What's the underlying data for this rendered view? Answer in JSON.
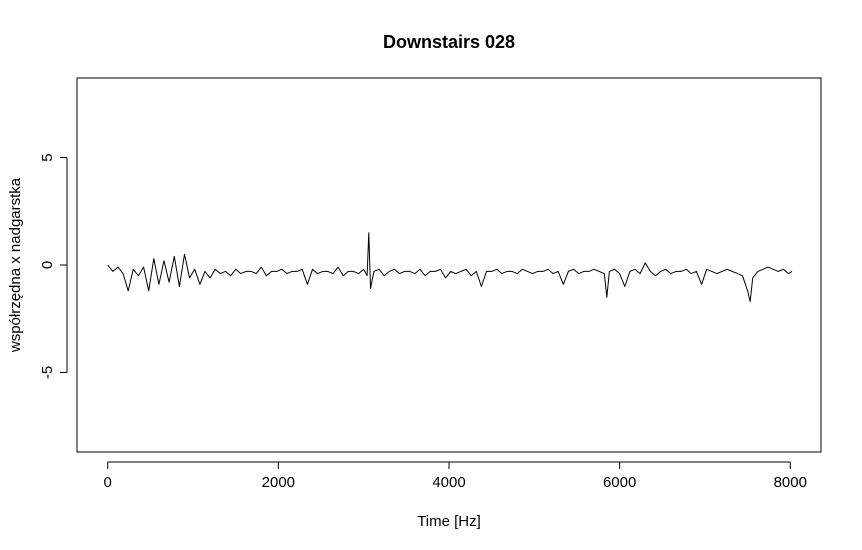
{
  "chart_data": {
    "type": "line",
    "title": "Downstairs 028",
    "xlabel": "Time [Hz]",
    "ylabel": "współrzędna x nadgarstka",
    "xlim": [
      -360,
      8360
    ],
    "ylim": [
      -8.7,
      8.7
    ],
    "xticks": [
      0,
      2000,
      4000,
      6000,
      8000
    ],
    "yticks": [
      -5,
      0,
      5
    ],
    "xtick_labels": [
      "0",
      "2000",
      "4000",
      "6000",
      "8000"
    ],
    "ytick_labels": [
      "-5",
      "0",
      "5"
    ],
    "grid": false,
    "legend": "none",
    "series": [
      {
        "line_color": "#000000",
        "x": [
          0,
          60,
          120,
          180,
          240,
          300,
          360,
          420,
          480,
          540,
          600,
          660,
          720,
          780,
          840,
          900,
          960,
          1020,
          1080,
          1140,
          1200,
          1260,
          1320,
          1380,
          1440,
          1500,
          1560,
          1620,
          1680,
          1740,
          1800,
          1860,
          1920,
          1980,
          2040,
          2100,
          2160,
          2220,
          2280,
          2340,
          2400,
          2460,
          2520,
          2580,
          2640,
          2700,
          2760,
          2820,
          2880,
          2940,
          3000,
          3040,
          3060,
          3080,
          3120,
          3180,
          3240,
          3300,
          3360,
          3420,
          3480,
          3540,
          3600,
          3660,
          3720,
          3780,
          3840,
          3900,
          3960,
          4020,
          4080,
          4140,
          4200,
          4260,
          4320,
          4380,
          4440,
          4500,
          4560,
          4620,
          4680,
          4740,
          4800,
          4860,
          4920,
          4980,
          5040,
          5100,
          5160,
          5220,
          5280,
          5340,
          5400,
          5460,
          5520,
          5580,
          5640,
          5700,
          5760,
          5820,
          5850,
          5880,
          5940,
          6000,
          6060,
          6120,
          6180,
          6240,
          6300,
          6360,
          6420,
          6480,
          6540,
          6600,
          6660,
          6720,
          6780,
          6840,
          6900,
          6960,
          7020,
          7080,
          7140,
          7200,
          7260,
          7320,
          7380,
          7440,
          7500,
          7530,
          7560,
          7620,
          7680,
          7740,
          7800,
          7860,
          7920,
          7980,
          8020
        ],
        "y": [
          0.0,
          -0.3,
          -0.1,
          -0.4,
          -1.2,
          -0.2,
          -0.5,
          -0.1,
          -1.2,
          0.3,
          -0.9,
          0.2,
          -0.8,
          0.4,
          -1.0,
          0.5,
          -0.6,
          -0.2,
          -0.9,
          -0.3,
          -0.6,
          -0.2,
          -0.4,
          -0.3,
          -0.5,
          -0.2,
          -0.4,
          -0.3,
          -0.3,
          -0.4,
          -0.1,
          -0.5,
          -0.3,
          -0.3,
          -0.2,
          -0.4,
          -0.3,
          -0.3,
          -0.2,
          -0.9,
          -0.2,
          -0.4,
          -0.3,
          -0.3,
          -0.4,
          -0.1,
          -0.5,
          -0.3,
          -0.3,
          -0.4,
          -0.2,
          -0.5,
          1.5,
          -1.1,
          -0.3,
          -0.2,
          -0.5,
          -0.3,
          -0.2,
          -0.4,
          -0.3,
          -0.3,
          -0.4,
          -0.2,
          -0.5,
          -0.3,
          -0.3,
          -0.2,
          -0.6,
          -0.3,
          -0.4,
          -0.3,
          -0.2,
          -0.5,
          -0.3,
          -1.0,
          -0.3,
          -0.3,
          -0.2,
          -0.4,
          -0.3,
          -0.3,
          -0.4,
          -0.2,
          -0.3,
          -0.4,
          -0.3,
          -0.3,
          -0.2,
          -0.4,
          -0.3,
          -0.9,
          -0.3,
          -0.2,
          -0.4,
          -0.3,
          -0.3,
          -0.2,
          -0.3,
          -0.4,
          -1.5,
          -0.3,
          -0.2,
          -0.4,
          -1.0,
          -0.3,
          -0.2,
          -0.4,
          0.1,
          -0.3,
          -0.5,
          -0.3,
          -0.2,
          -0.4,
          -0.3,
          -0.3,
          -0.2,
          -0.4,
          -0.3,
          -0.9,
          -0.2,
          -0.3,
          -0.4,
          -0.3,
          -0.2,
          -0.3,
          -0.4,
          -0.5,
          -1.2,
          -1.7,
          -0.6,
          -0.3,
          -0.2,
          -0.1,
          -0.2,
          -0.3,
          -0.2,
          -0.4,
          -0.3
        ]
      }
    ]
  }
}
